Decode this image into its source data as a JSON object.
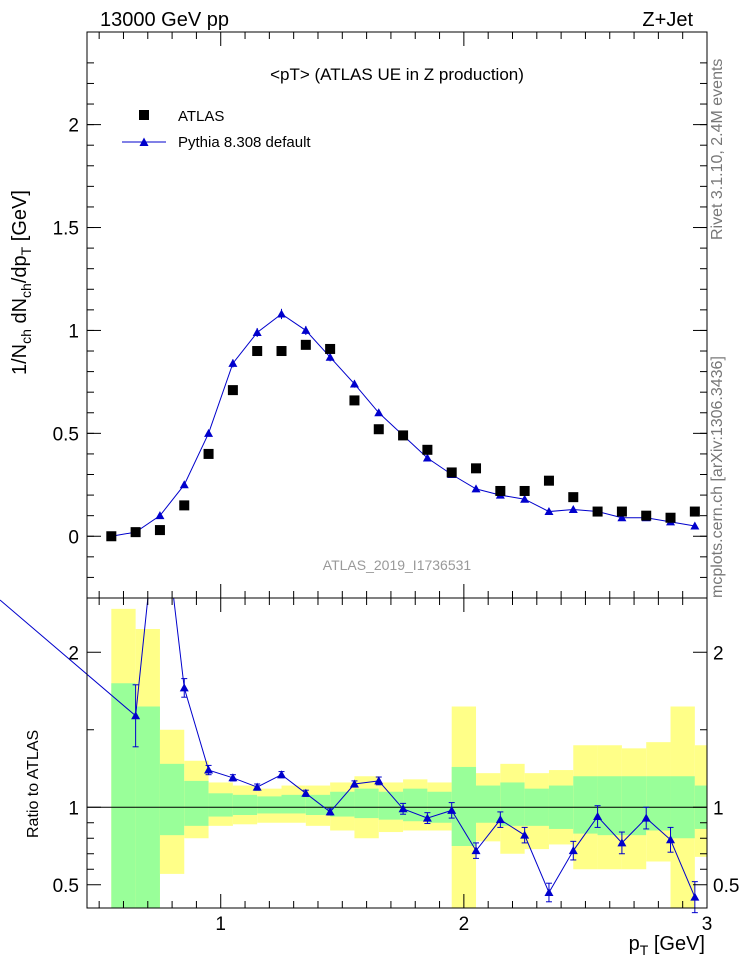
{
  "header": {
    "energy_label": "13000 GeV pp",
    "process_label": "Z+Jet"
  },
  "side_labels": {
    "rivet": "Rivet 3.1.10, 2.4M events",
    "mcplots": "mcplots.cern.ch [arXiv:1306.3436]"
  },
  "colors": {
    "mc": "#0000cc",
    "data": "#000000",
    "band_inner": "#99ff99",
    "band_outer": "#ffff88"
  },
  "chart_data": [
    {
      "type": "scatter",
      "title": "<pT> (ATLAS UE in Z production)",
      "analysis_label": "ATLAS_2019_I1736531",
      "ylabel": "1/N_ch dN_ch/dp_T [GeV]",
      "xlim": [
        0.45,
        3.0
      ],
      "ylim": [
        -0.3,
        2.45
      ],
      "x_ticks": [
        1,
        2,
        3
      ],
      "y_ticks": [
        0,
        0.5,
        1,
        1.5,
        2
      ],
      "y_tick_labels": [
        "0",
        "0.5",
        "1",
        "1.5",
        "2"
      ],
      "legend": {
        "placement": "top-left",
        "entries": [
          "ATLAS",
          "Pythia 8.308 default"
        ]
      },
      "series": [
        {
          "name": "ATLAS",
          "marker": "square",
          "x": [
            0.55,
            0.65,
            0.75,
            0.85,
            0.95,
            1.05,
            1.15,
            1.25,
            1.35,
            1.45,
            1.55,
            1.65,
            1.75,
            1.85,
            1.95,
            2.05,
            2.15,
            2.25,
            2.35,
            2.45,
            2.55,
            2.65,
            2.75,
            2.85,
            2.95
          ],
          "y": [
            0.0,
            0.02,
            0.03,
            0.15,
            0.4,
            0.71,
            0.9,
            0.9,
            0.93,
            0.91,
            0.66,
            0.52,
            0.49,
            0.42,
            0.31,
            0.33,
            0.22,
            0.22,
            0.27,
            0.19,
            0.12,
            0.12,
            0.1,
            0.09,
            0.12
          ]
        },
        {
          "name": "Pythia 8.308 default",
          "marker": "triangle",
          "x": [
            0.55,
            0.65,
            0.75,
            0.85,
            0.95,
            1.05,
            1.15,
            1.25,
            1.35,
            1.45,
            1.55,
            1.65,
            1.75,
            1.85,
            1.95,
            2.05,
            2.15,
            2.25,
            2.35,
            2.45,
            2.55,
            2.65,
            2.75,
            2.85,
            2.95
          ],
          "y": [
            0.0,
            0.02,
            0.1,
            0.25,
            0.5,
            0.84,
            0.99,
            1.08,
            1.0,
            0.87,
            0.74,
            0.6,
            0.49,
            0.38,
            0.3,
            0.23,
            0.2,
            0.18,
            0.12,
            0.13,
            0.12,
            0.09,
            0.09,
            0.07,
            0.05
          ],
          "yerr": [
            0.005,
            0.005,
            0.01,
            0.012,
            0.015,
            0.02,
            0.022,
            0.025,
            0.022,
            0.02,
            0.018,
            0.015,
            0.013,
            0.012,
            0.01,
            0.009,
            0.008,
            0.008,
            0.007,
            0.007,
            0.007,
            0.006,
            0.006,
            0.006,
            0.006
          ]
        }
      ]
    },
    {
      "type": "line",
      "ylabel": "Ratio to ATLAS",
      "xlabel": "p_T [GeV]",
      "xlim": [
        0.45,
        3.0
      ],
      "ylim": [
        0.35,
        2.35
      ],
      "x_ticks": [
        1,
        2,
        3
      ],
      "x_tick_labels": [
        "1",
        "2",
        "3"
      ],
      "y_ticks": [
        0.5,
        1,
        2
      ],
      "y_tick_labels": [
        "0.5",
        "1",
        "2"
      ],
      "reference_line": 1,
      "bands": {
        "edges": [
          0.55,
          0.65,
          0.75,
          0.85,
          0.95,
          1.05,
          1.15,
          1.25,
          1.35,
          1.45,
          1.55,
          1.65,
          1.75,
          1.85,
          1.95,
          2.05,
          2.15,
          2.25,
          2.35,
          2.45,
          2.55,
          2.65,
          2.75,
          2.85,
          2.95,
          3.05
        ],
        "inner_low": [
          0.35,
          0.35,
          0.82,
          0.88,
          0.94,
          0.95,
          0.96,
          0.96,
          0.95,
          0.94,
          0.93,
          0.92,
          0.91,
          0.9,
          0.75,
          0.9,
          0.88,
          0.88,
          0.86,
          0.83,
          0.82,
          0.82,
          0.85,
          0.8,
          0.86
        ],
        "inner_high": [
          1.8,
          1.65,
          1.28,
          1.17,
          1.09,
          1.08,
          1.07,
          1.08,
          1.08,
          1.1,
          1.12,
          1.1,
          1.12,
          1.1,
          1.26,
          1.14,
          1.16,
          1.12,
          1.14,
          1.2,
          1.2,
          1.2,
          1.2,
          1.2,
          1.14
        ],
        "outer_low": [
          0.35,
          0.35,
          0.57,
          0.8,
          0.88,
          0.89,
          0.9,
          0.9,
          0.88,
          0.85,
          0.8,
          0.84,
          0.85,
          0.85,
          0.35,
          0.78,
          0.7,
          0.73,
          0.76,
          0.6,
          0.6,
          0.6,
          0.65,
          0.35,
          0.68
        ],
        "outer_high": [
          2.28,
          2.15,
          1.5,
          1.3,
          1.16,
          1.14,
          1.12,
          1.14,
          1.14,
          1.16,
          1.2,
          1.16,
          1.18,
          1.16,
          1.65,
          1.22,
          1.28,
          1.22,
          1.24,
          1.4,
          1.4,
          1.38,
          1.42,
          1.65,
          1.4
        ]
      },
      "series": [
        {
          "name": "Pythia 8.308 default",
          "x": [
            0.65,
            0.75,
            0.85,
            0.95,
            1.05,
            1.15,
            1.25,
            1.35,
            1.45,
            1.55,
            1.65,
            1.75,
            1.85,
            1.95,
            2.05,
            2.15,
            2.25,
            2.35,
            2.45,
            2.55,
            2.65,
            2.75,
            2.85,
            2.95
          ],
          "y": [
            1.59,
            3.1,
            1.77,
            1.24,
            1.19,
            1.13,
            1.21,
            1.09,
            0.97,
            1.15,
            1.17,
            0.99,
            0.93,
            0.98,
            0.72,
            0.92,
            0.82,
            0.45,
            0.72,
            0.94,
            0.77,
            0.93,
            0.79,
            0.42
          ],
          "yerr": [
            0.2,
            0.3,
            0.06,
            0.03,
            0.02,
            0.02,
            0.02,
            0.02,
            0.02,
            0.02,
            0.025,
            0.035,
            0.035,
            0.05,
            0.05,
            0.05,
            0.05,
            0.06,
            0.06,
            0.07,
            0.07,
            0.07,
            0.08,
            0.1
          ]
        }
      ]
    }
  ]
}
